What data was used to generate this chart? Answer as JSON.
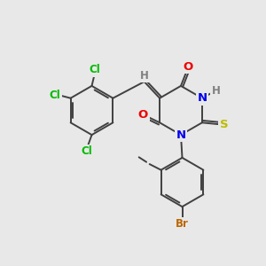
{
  "bg_color": "#e8e8e8",
  "bond_color": "#404040",
  "bond_width": 1.4,
  "atom_colors": {
    "C": "#404040",
    "H": "#808080",
    "N": "#0000ee",
    "O": "#ee0000",
    "S": "#bbbb00",
    "Cl": "#00bb00",
    "Br": "#bb6600"
  },
  "font_size": 8.5,
  "fig_size": [
    3.0,
    3.0
  ],
  "dpi": 100,
  "xlim": [
    0,
    10
  ],
  "ylim": [
    0,
    10
  ]
}
